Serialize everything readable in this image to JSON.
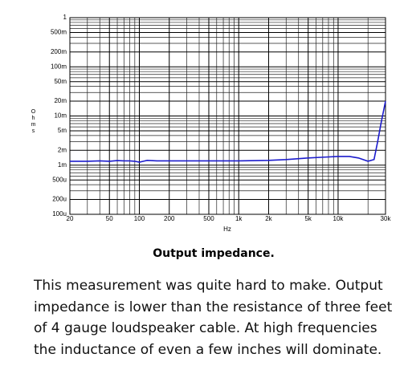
{
  "chart_data": {
    "type": "line",
    "x_label": "Hz",
    "y_label": "Ohms",
    "x_scale": "log",
    "y_scale": "log",
    "grid": true,
    "xlim": [
      20,
      30000
    ],
    "xticks": [
      20,
      50,
      100,
      200,
      500,
      {
        "value": 1000,
        "label": "1k"
      },
      {
        "value": 2000,
        "label": "2k"
      },
      {
        "value": 5000,
        "label": "5k"
      },
      {
        "value": 10000,
        "label": "10k"
      },
      {
        "value": 30000,
        "label": "30k"
      }
    ],
    "xminor_ticks": [
      30,
      40,
      60,
      70,
      80,
      90,
      300,
      400,
      600,
      700,
      800,
      900,
      3000,
      4000,
      6000,
      7000,
      8000,
      9000,
      20000
    ],
    "ylim": [
      0.0001,
      1
    ],
    "yticks": [
      {
        "value": 0.0001,
        "label": "100u"
      },
      {
        "value": 0.0002,
        "label": "200u"
      },
      {
        "value": 0.0005,
        "label": "500u"
      },
      {
        "value": 0.001,
        "label": "1m"
      },
      {
        "value": 0.002,
        "label": "2m"
      },
      {
        "value": 0.005,
        "label": "5m"
      },
      {
        "value": 0.01,
        "label": "10m"
      },
      {
        "value": 0.02,
        "label": "20m"
      },
      {
        "value": 0.05,
        "label": "50m"
      },
      {
        "value": 0.1,
        "label": "100m"
      },
      {
        "value": 0.2,
        "label": "200m"
      },
      {
        "value": 0.5,
        "label": "500m"
      },
      1
    ],
    "yminor_ticks": [
      0.0003,
      0.0004,
      0.0006,
      0.0007,
      0.0008,
      0.0009,
      0.003,
      0.004,
      0.006,
      0.007,
      0.008,
      0.009,
      0.03,
      0.04,
      0.06,
      0.07,
      0.08,
      0.09,
      0.3,
      0.4,
      0.6,
      0.7,
      0.8,
      0.9
    ],
    "series": [
      {
        "color": "#1c1ccc",
        "x": [
          20,
          30,
          40,
          50,
          60,
          70,
          80,
          90,
          100,
          110,
          120,
          150,
          200,
          300,
          500,
          1000,
          2000,
          3000,
          5000,
          7000,
          10000,
          13000,
          16000,
          20000,
          23000,
          25000,
          27000,
          30000
        ],
        "values": [
          0.0012,
          0.0012,
          0.00122,
          0.0012,
          0.00124,
          0.00122,
          0.00122,
          0.0012,
          0.00115,
          0.0012,
          0.00125,
          0.00122,
          0.00122,
          0.00122,
          0.00122,
          0.00122,
          0.00125,
          0.0013,
          0.0014,
          0.00145,
          0.0015,
          0.0015,
          0.0014,
          0.0012,
          0.0013,
          0.003,
          0.007,
          0.02
        ]
      }
    ]
  },
  "caption": "Output impedance.",
  "body": [
    "This measurement was quite hard to make. Output",
    "impedance is lower than the resistance of three feet",
    "of 4 gauge loudspeaker cable. At high frequencies",
    "the inductance of even a few inches will dominate."
  ]
}
